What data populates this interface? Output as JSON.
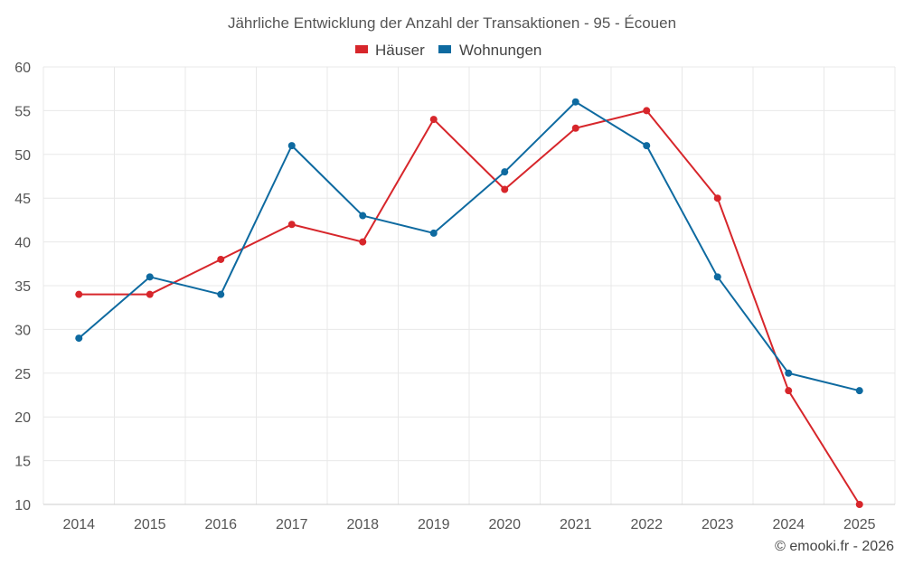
{
  "chart_data": {
    "type": "line",
    "title": "Jährliche Entwicklung der Anzahl der Transaktionen - 95 - Écouen",
    "categories": [
      "2014",
      "2015",
      "2016",
      "2017",
      "2018",
      "2019",
      "2020",
      "2021",
      "2022",
      "2023",
      "2024",
      "2025"
    ],
    "series": [
      {
        "name": "Häuser",
        "color": "#d7262b",
        "values": [
          34,
          34,
          38,
          42,
          40,
          54,
          46,
          53,
          55,
          45,
          23,
          10
        ]
      },
      {
        "name": "Wohnungen",
        "color": "#0e6aa0",
        "values": [
          29,
          36,
          34,
          51,
          43,
          41,
          48,
          56,
          51,
          36,
          25,
          23
        ]
      }
    ],
    "ylim": [
      10,
      60
    ],
    "yticks": [
      10,
      15,
      20,
      25,
      30,
      35,
      40,
      45,
      50,
      55,
      60
    ],
    "xlabel": "",
    "ylabel": "",
    "grid": true,
    "legend_position": "top-center"
  },
  "credit": "© emooki.fr - 2026"
}
